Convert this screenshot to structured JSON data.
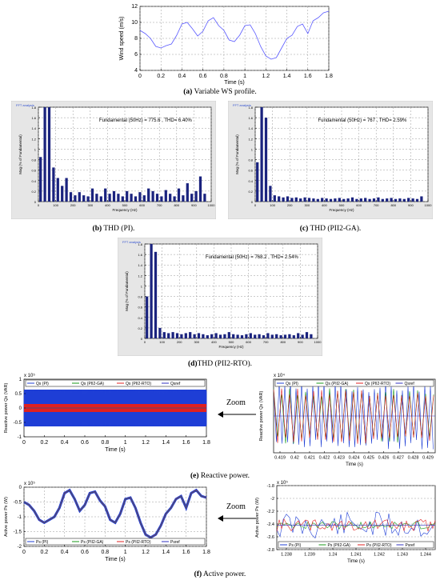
{
  "figure_a": {
    "caption_letter": "(a)",
    "caption_text": " Variable WS profile.",
    "chart_data": {
      "type": "line",
      "xlabel": "Time (s)",
      "ylabel": "Wind speed (m/s)",
      "xlim": [
        0,
        1.8
      ],
      "ylim": [
        4,
        12
      ],
      "xticks": [
        "0",
        "0.2",
        "0.4",
        "0.6",
        "0.8",
        "1",
        "1.2",
        "1.4",
        "1.6",
        "1.8"
      ],
      "yticks": [
        "4",
        "6",
        "8",
        "10",
        "12"
      ],
      "grid": true,
      "x": [
        0,
        0.05,
        0.1,
        0.15,
        0.2,
        0.25,
        0.3,
        0.35,
        0.4,
        0.45,
        0.5,
        0.55,
        0.6,
        0.65,
        0.7,
        0.75,
        0.8,
        0.85,
        0.9,
        0.95,
        1.0,
        1.05,
        1.1,
        1.15,
        1.2,
        1.25,
        1.3,
        1.35,
        1.4,
        1.45,
        1.5,
        1.55,
        1.6,
        1.65,
        1.7,
        1.75,
        1.8
      ],
      "y": [
        9.0,
        8.6,
        8.0,
        7.0,
        6.8,
        7.1,
        7.3,
        8.4,
        9.8,
        10.0,
        9.2,
        8.3,
        8.9,
        10.2,
        10.6,
        9.6,
        9.0,
        7.8,
        7.6,
        8.4,
        9.6,
        9.7,
        8.6,
        7.0,
        5.8,
        5.4,
        5.6,
        6.8,
        8.0,
        8.4,
        9.5,
        9.8,
        8.6,
        10.2,
        10.6,
        11.2,
        11.4
      ]
    }
  },
  "figure_b": {
    "caption_letter": "(b)",
    "caption_text": " THD (PI).",
    "chart_data": {
      "type": "bar",
      "title": "FFT analysis",
      "annotation": "Fundamental (50Hz) = 775.6 , THD= 6.40%",
      "xlabel": "Frequency (Hz)",
      "ylabel": "Mag (% of Fundamental)",
      "xlim": [
        0,
        1000
      ],
      "ylim": [
        0,
        1.8
      ],
      "xticks": [
        "0",
        "100",
        "200",
        "300",
        "400",
        "500",
        "600",
        "700",
        "800",
        "900",
        "1000"
      ],
      "yticks": [
        "0",
        "0.2",
        "0.4",
        "0.6",
        "0.8",
        "1",
        "1.2",
        "1.4",
        "1.6",
        "1.8"
      ],
      "x": [
        0,
        25,
        50,
        75,
        100,
        125,
        150,
        175,
        200,
        225,
        250,
        275,
        300,
        325,
        350,
        375,
        400,
        425,
        450,
        475,
        500,
        525,
        550,
        575,
        600,
        625,
        650,
        675,
        700,
        725,
        750,
        775,
        800,
        825,
        850,
        875,
        900,
        925,
        950
      ],
      "values": [
        0.85,
        1.8,
        1.8,
        0.65,
        0.45,
        0.3,
        0.45,
        0.18,
        0.12,
        0.18,
        0.12,
        0.1,
        0.25,
        0.15,
        0.1,
        0.25,
        0.15,
        0.2,
        0.15,
        0.1,
        0.2,
        0.15,
        0.1,
        0.18,
        0.12,
        0.25,
        0.2,
        0.15,
        0.1,
        0.22,
        0.15,
        0.1,
        0.25,
        0.12,
        0.35,
        0.15,
        0.2,
        0.48,
        0.15
      ]
    }
  },
  "figure_c": {
    "caption_letter": "(c)",
    "caption_text": " THD (PII2-GA).",
    "chart_data": {
      "type": "bar",
      "title": "FFT analysis",
      "annotation": "Fundamental (50Hz) = 767 , THD= 2.59%",
      "xlabel": "Frequency (Hz)",
      "ylabel": "Mag (% of Fundamental)",
      "xlim": [
        0,
        1000
      ],
      "ylim": [
        0,
        1.8
      ],
      "xticks": [
        "0",
        "100",
        "200",
        "300",
        "400",
        "500",
        "600",
        "700",
        "800",
        "900",
        "1000"
      ],
      "yticks": [
        "0",
        "0.2",
        "0.4",
        "0.6",
        "0.8",
        "1",
        "1.2",
        "1.4",
        "1.6",
        "1.8"
      ],
      "x": [
        0,
        25,
        50,
        75,
        100,
        125,
        150,
        175,
        200,
        225,
        250,
        275,
        300,
        325,
        350,
        375,
        400,
        425,
        450,
        475,
        500,
        525,
        550,
        575,
        600,
        625,
        650,
        675,
        700,
        725,
        750,
        775,
        800,
        825,
        850,
        875,
        900,
        925,
        950
      ],
      "values": [
        0.75,
        1.8,
        1.6,
        0.3,
        0.12,
        0.1,
        0.08,
        0.1,
        0.07,
        0.08,
        0.06,
        0.08,
        0.07,
        0.06,
        0.05,
        0.07,
        0.06,
        0.05,
        0.06,
        0.07,
        0.05,
        0.06,
        0.08,
        0.05,
        0.06,
        0.07,
        0.05,
        0.06,
        0.08,
        0.05,
        0.06,
        0.07,
        0.05,
        0.06,
        0.05,
        0.07,
        0.06,
        0.05,
        0.1
      ]
    }
  },
  "figure_d": {
    "caption_letter": "(d)",
    "caption_text": "THD (PII2-RTO).",
    "chart_data": {
      "type": "bar",
      "title": "FFT analysis",
      "annotation": "Fundamental (50Hz) = 768.2 , THD= 2.54%",
      "xlabel": "Frequency (Hz)",
      "ylabel": "Mag (% of Fundamental)",
      "xlim": [
        0,
        1000
      ],
      "ylim": [
        0,
        1.8
      ],
      "xticks": [
        "0",
        "100",
        "200",
        "300",
        "400",
        "500",
        "600",
        "700",
        "800",
        "900",
        "1000"
      ],
      "yticks": [
        "0",
        "0.2",
        "0.4",
        "0.6",
        "0.8",
        "1",
        "1.2",
        "1.4",
        "1.6",
        "1.8"
      ],
      "x": [
        0,
        25,
        50,
        75,
        100,
        125,
        150,
        175,
        200,
        225,
        250,
        275,
        300,
        325,
        350,
        375,
        400,
        425,
        450,
        475,
        500,
        525,
        550,
        575,
        600,
        625,
        650,
        675,
        700,
        725,
        750,
        775,
        800,
        825,
        850,
        875,
        900,
        925,
        950
      ],
      "values": [
        0.8,
        1.8,
        1.65,
        0.2,
        0.12,
        0.1,
        0.12,
        0.1,
        0.08,
        0.1,
        0.12,
        0.08,
        0.1,
        0.08,
        0.06,
        0.08,
        0.1,
        0.07,
        0.08,
        0.12,
        0.08,
        0.07,
        0.06,
        0.08,
        0.1,
        0.07,
        0.08,
        0.06,
        0.1,
        0.07,
        0.08,
        0.06,
        0.07,
        0.08,
        0.06,
        0.1,
        0.07,
        0.12,
        0.08
      ]
    }
  },
  "figure_e": {
    "caption_letter": "(e)",
    "caption_text": " Reactive power.",
    "zoom_label": "Zoom",
    "left": {
      "chart_data": {
        "type": "line",
        "xlabel": "Time  (s)",
        "ylabel": "Reactive power Qs (VAR)",
        "exponent": "x 10⁵",
        "xlim": [
          0,
          1.8
        ],
        "ylim": [
          -1,
          1
        ],
        "xticks": [
          "0",
          "0.2",
          "0.4",
          "0.6",
          "0.8",
          "1",
          "1.2",
          "1.4",
          "1.6",
          "1.8"
        ],
        "yticks": [
          "-1",
          "-0.5",
          "0",
          "0.5",
          "1"
        ],
        "legend": [
          "Qs (PI)",
          "Qs (PII2-GA)",
          "Qs (PII2-RTO)",
          "Qsref"
        ],
        "series_colors": [
          "#1f3fd6",
          "#1a9a1a",
          "#e02020",
          "#3030c0"
        ]
      }
    },
    "right": {
      "chart_data": {
        "type": "line",
        "xlabel": "Time  (s)",
        "ylabel": "Reactive power Qs (VAR)",
        "exponent": "x 10⁴",
        "xlim": [
          0.418,
          0.4298
        ],
        "xticks": [
          "0.419",
          "0.42",
          "0.421",
          "0.422",
          "0.423",
          "0.424",
          "0.425",
          "0.426",
          "0.427",
          "0.428",
          "0.429"
        ],
        "yticks": [],
        "legend": [
          "Qs (PI)",
          "Qs (PII2-GA)",
          "Qs (PII2-RTO)",
          "Qsref"
        ],
        "series_colors": [
          "#1f3fd6",
          "#1a9a1a",
          "#e02020",
          "#3030c0"
        ]
      }
    }
  },
  "figure_f": {
    "caption_letter": "(f)",
    "caption_text": " Active power.",
    "zoom_label": "Zoom",
    "left": {
      "chart_data": {
        "type": "line",
        "xlabel": "Time (s)",
        "ylabel": "Active power Ps (W)",
        "exponent": "x 10⁵",
        "xlim": [
          0,
          1.8
        ],
        "ylim": [
          -2,
          0
        ],
        "xticks": [
          "0",
          "0.2",
          "0.4",
          "0.6",
          "0.8",
          "1",
          "1.2",
          "1.4",
          "1.6",
          "1.8"
        ],
        "yticks": [
          "-2",
          "-1.5",
          "-1",
          "-0.5",
          "0"
        ],
        "legend": [
          "Ps (PI)",
          "Ps (PII2-GA)",
          "Ps (PII2-RTO)",
          "Psref"
        ],
        "series_colors": [
          "#1f3fd6",
          "#1a9a1a",
          "#e02020",
          "#3030c0"
        ],
        "x": [
          0,
          0.05,
          0.1,
          0.15,
          0.2,
          0.25,
          0.3,
          0.35,
          0.4,
          0.45,
          0.5,
          0.55,
          0.6,
          0.65,
          0.7,
          0.75,
          0.8,
          0.85,
          0.9,
          0.95,
          1.0,
          1.05,
          1.1,
          1.15,
          1.2,
          1.25,
          1.3,
          1.35,
          1.4,
          1.45,
          1.5,
          1.55,
          1.6,
          1.65,
          1.7,
          1.75,
          1.8
        ],
        "y": [
          -0.5,
          -0.6,
          -0.8,
          -1.1,
          -1.2,
          -1.1,
          -1.0,
          -0.7,
          -0.2,
          -0.1,
          -0.4,
          -0.8,
          -0.6,
          -0.2,
          -0.15,
          -0.45,
          -0.65,
          -1.1,
          -1.2,
          -0.9,
          -0.4,
          -0.35,
          -0.7,
          -1.2,
          -1.6,
          -1.7,
          -1.6,
          -1.3,
          -0.9,
          -0.7,
          -0.4,
          -0.3,
          -0.7,
          -0.2,
          -0.1,
          -0.3,
          -0.35
        ]
      }
    },
    "right": {
      "chart_data": {
        "type": "line",
        "xlabel": "Time  (s)",
        "ylabel": "Active power Ps (W)",
        "exponent": "x 10⁵",
        "xlim": [
          1.2375,
          1.2445
        ],
        "ylim": [
          -2.8,
          -1.8
        ],
        "xticks": [
          "1.238",
          "1.239",
          "1.24",
          "1.241",
          "1.242",
          "1.243",
          "1.244"
        ],
        "yticks": [
          "-2.8",
          "-2.6",
          "-2.4",
          "-2.2",
          "-2",
          "-1.8"
        ],
        "legend": [
          "Ps (PI)",
          "Ps (PII2-GA)",
          "Ps (PII2-RTO)",
          "Psref"
        ],
        "series_colors": [
          "#1f3fd6",
          "#1a9a1a",
          "#e02020",
          "#3030c0"
        ]
      }
    }
  }
}
